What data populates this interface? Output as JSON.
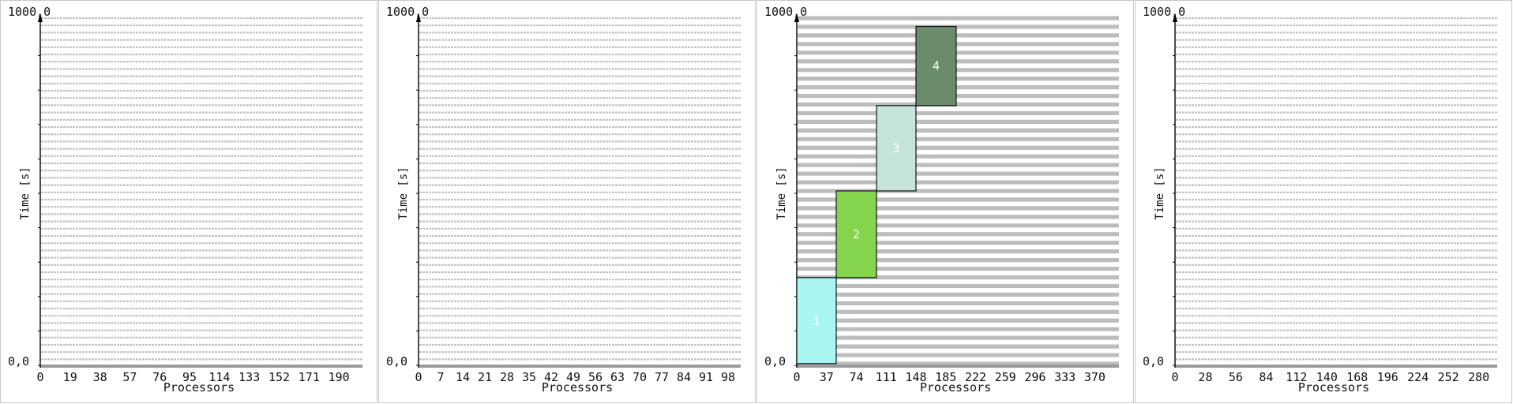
{
  "panels": [
    {
      "chart_data": {
        "type": "gantt",
        "ylabel": "Time [s]",
        "xlabel": "Processors",
        "y_top_label": "1000,0",
        "y_bottom_label": "0,0",
        "ylim": [
          0,
          1000
        ],
        "xlim": [
          0,
          205
        ],
        "x_ticks": [
          "0",
          "19",
          "38",
          "57",
          "76",
          "95",
          "114",
          "133",
          "152",
          "171",
          "190"
        ],
        "tasks": []
      }
    },
    {
      "chart_data": {
        "type": "gantt",
        "ylabel": "Time [s]",
        "xlabel": "Processors",
        "y_top_label": "1000,0",
        "y_bottom_label": "0,0",
        "ylim": [
          0,
          1000
        ],
        "xlim": [
          0,
          102
        ],
        "x_ticks": [
          "0",
          "7",
          "14",
          "21",
          "28",
          "35",
          "42",
          "49",
          "56",
          "63",
          "70",
          "77",
          "84",
          "91",
          "98"
        ],
        "tasks": []
      }
    },
    {
      "chart_data": {
        "type": "gantt",
        "ylabel": "Time [s]",
        "xlabel": "Processors",
        "y_top_label": "1000,0",
        "y_bottom_label": "0,0",
        "ylim": [
          0,
          1000
        ],
        "xlim": [
          0,
          400
        ],
        "x_ticks": [
          "0",
          "37",
          "74",
          "111",
          "148",
          "185",
          "222",
          "259",
          "296",
          "333",
          "370"
        ],
        "tasks": [
          {
            "label": "1",
            "x0": 0,
            "x1": 49,
            "y0": 5,
            "y1": 255,
            "color": "#a8f5f2",
            "text_color": "#ffffff"
          },
          {
            "label": "2",
            "x0": 49,
            "x1": 99,
            "y0": 255,
            "y1": 507,
            "color": "#84d44e",
            "text_color": "#ffffff"
          },
          {
            "label": "3",
            "x0": 99,
            "x1": 148,
            "y0": 507,
            "y1": 755,
            "color": "#c5e4dc",
            "text_color": "#ffffff"
          },
          {
            "label": "4",
            "x0": 148,
            "x1": 198,
            "y0": 755,
            "y1": 985,
            "color": "#6a8c6c",
            "text_color": "#ffffff"
          }
        ]
      }
    },
    {
      "chart_data": {
        "type": "gantt",
        "ylabel": "Time [s]",
        "xlabel": "Processors",
        "y_top_label": "1000,0",
        "y_bottom_label": "0,0",
        "ylim": [
          0,
          1000
        ],
        "xlim": [
          0,
          297
        ],
        "x_ticks": [
          "0",
          "28",
          "56",
          "84",
          "112",
          "140",
          "168",
          "196",
          "224",
          "252",
          "280"
        ],
        "tasks": []
      }
    }
  ]
}
